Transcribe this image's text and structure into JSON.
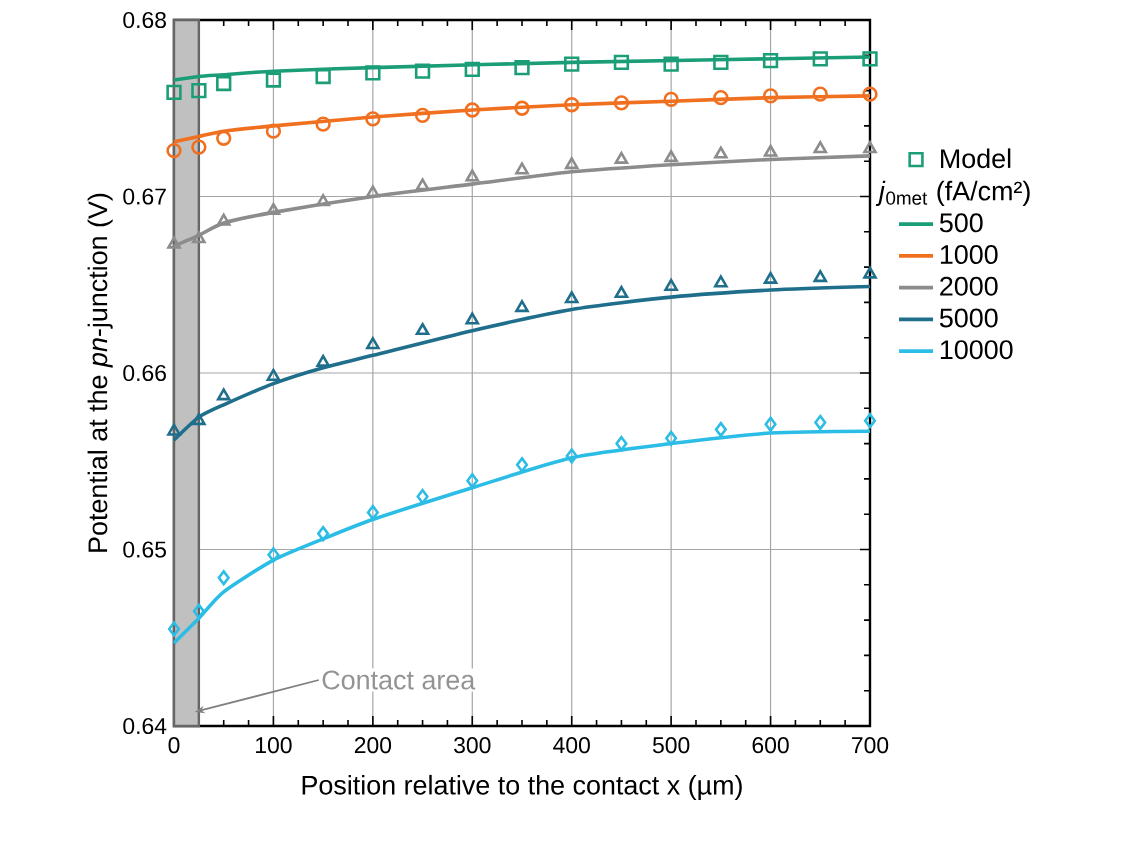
{
  "chart_data": {
    "type": "line",
    "xlabel": "Position relative to the contact x (µm)",
    "ylabel": "Potential at the *pn*-junction (V)",
    "legend_title": "*j*$_{0met}$ (fA/cm²)",
    "xlim": [
      0,
      700
    ],
    "xticks": [
      0,
      100,
      200,
      300,
      400,
      500,
      600,
      700
    ],
    "ylim": [
      0.64,
      0.68
    ],
    "yticks": [
      0.64,
      0.65,
      0.66,
      0.67,
      0.68
    ],
    "grid": true,
    "legend": "right",
    "bands": [
      {
        "axis": "x",
        "from": 0,
        "to": 25,
        "label": "Contact area",
        "color": "#c0c0c0"
      }
    ],
    "series": [
      {
        "type": "scatter",
        "name": "Model",
        "marker": "square",
        "color": "#1b9e77",
        "x": [
          0,
          25,
          50,
          100,
          150,
          200,
          250,
          300,
          350,
          400,
          450,
          500,
          550,
          600,
          650,
          700
        ],
        "values": [
          0.6759,
          0.676,
          0.6764,
          0.6766,
          0.6768,
          0.677,
          0.6771,
          0.6772,
          0.6773,
          0.6775,
          0.6776,
          0.6775,
          0.6776,
          0.6777,
          0.6778,
          0.6778
        ]
      },
      {
        "type": "scatter",
        "marker": "circle",
        "color": "#f07020",
        "x": [
          0,
          25,
          50,
          100,
          150,
          200,
          250,
          300,
          350,
          400,
          450,
          500,
          550,
          600,
          650,
          700
        ],
        "values": [
          0.6726,
          0.6728,
          0.6733,
          0.6737,
          0.6741,
          0.6744,
          0.6746,
          0.6749,
          0.675,
          0.6752,
          0.6753,
          0.6755,
          0.6756,
          0.6757,
          0.6758,
          0.6758
        ]
      },
      {
        "type": "scatter",
        "marker": "triangle",
        "color": "#8c8c8c",
        "x": [
          0,
          25,
          50,
          100,
          150,
          200,
          250,
          300,
          350,
          400,
          450,
          500,
          550,
          600,
          650,
          700
        ],
        "values": [
          0.6673,
          0.6676,
          0.6686,
          0.6692,
          0.6697,
          0.6702,
          0.6706,
          0.6711,
          0.6715,
          0.6718,
          0.6721,
          0.6722,
          0.6724,
          0.6725,
          0.6727,
          0.6727
        ]
      },
      {
        "type": "scatter",
        "marker": "triangle",
        "color": "#1f6e8c",
        "x": [
          0,
          25,
          50,
          100,
          150,
          200,
          250,
          300,
          350,
          400,
          450,
          500,
          550,
          600,
          650,
          700
        ],
        "values": [
          0.6567,
          0.6573,
          0.6587,
          0.6598,
          0.6606,
          0.6616,
          0.6624,
          0.663,
          0.6637,
          0.6642,
          0.6645,
          0.6649,
          0.6651,
          0.6653,
          0.6654,
          0.6656
        ]
      },
      {
        "type": "scatter",
        "marker": "diamond",
        "color": "#2bbde6",
        "x": [
          0,
          25,
          50,
          100,
          150,
          200,
          250,
          300,
          350,
          400,
          450,
          500,
          550,
          600,
          650,
          700
        ],
        "values": [
          0.6455,
          0.6465,
          0.6484,
          0.6497,
          0.6509,
          0.6521,
          0.653,
          0.6539,
          0.6548,
          0.6553,
          0.656,
          0.6563,
          0.6568,
          0.6571,
          0.6572,
          0.6573
        ]
      },
      {
        "name": "500",
        "color": "#1b9e77",
        "x": [
          0,
          25,
          50,
          100,
          200,
          400,
          700
        ],
        "values": [
          0.6766,
          0.6768,
          0.6769,
          0.6771,
          0.6773,
          0.6776,
          0.6779
        ]
      },
      {
        "name": "1000",
        "color": "#f07020",
        "x": [
          0,
          25,
          50,
          100,
          200,
          300,
          400,
          500,
          600,
          700
        ],
        "values": [
          0.6731,
          0.6734,
          0.6737,
          0.674,
          0.6745,
          0.6749,
          0.6752,
          0.6754,
          0.6756,
          0.6757
        ]
      },
      {
        "name": "2000",
        "color": "#8c8c8c",
        "x": [
          0,
          25,
          50,
          100,
          200,
          300,
          400,
          500,
          600,
          700
        ],
        "values": [
          0.6672,
          0.6678,
          0.6685,
          0.6691,
          0.67,
          0.6707,
          0.6714,
          0.6718,
          0.6721,
          0.6723
        ]
      },
      {
        "name": "5000",
        "color": "#1f6e8c",
        "x": [
          0,
          25,
          50,
          100,
          150,
          200,
          300,
          400,
          500,
          600,
          700
        ],
        "values": [
          0.6562,
          0.6575,
          0.6582,
          0.6594,
          0.6603,
          0.661,
          0.6624,
          0.6636,
          0.6643,
          0.6647,
          0.6649
        ]
      },
      {
        "name": "10000",
        "color": "#2bbde6",
        "x": [
          0,
          25,
          50,
          100,
          150,
          200,
          300,
          400,
          500,
          600,
          700
        ],
        "values": [
          0.6447,
          0.6461,
          0.6476,
          0.6494,
          0.6506,
          0.6517,
          0.6535,
          0.6552,
          0.656,
          0.6566,
          0.6567
        ]
      }
    ]
  }
}
